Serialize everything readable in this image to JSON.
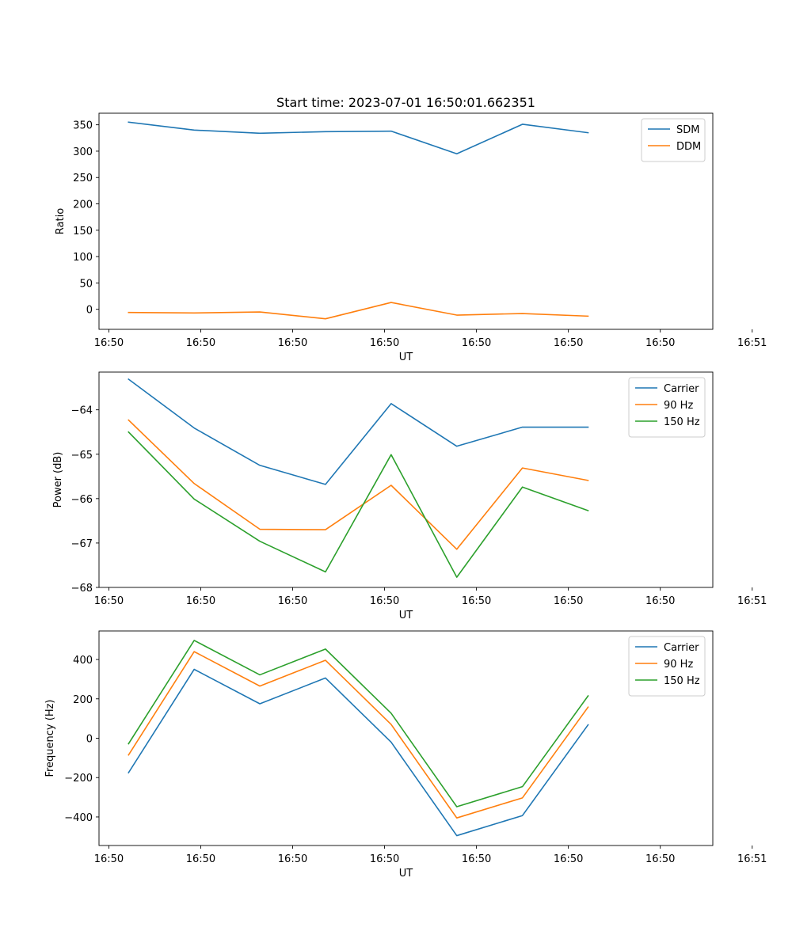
{
  "chart_data": [
    {
      "type": "line",
      "title": "Start time: 2023-07-01 16:50:01.662351",
      "xlabel": "UT",
      "ylabel": "Ratio",
      "x": [
        0,
        1,
        2,
        3,
        4,
        5,
        6,
        7
      ],
      "xlim": [
        -0.45,
        8.9
      ],
      "ylim": [
        -38,
        372
      ],
      "xticks": [
        -0.3,
        1.1,
        2.5,
        3.9,
        5.3,
        6.7,
        8.1,
        9.5
      ],
      "xtick_labels": [
        "16:50",
        "16:50",
        "16:50",
        "16:50",
        "16:50",
        "16:50",
        "16:50",
        "16:51"
      ],
      "yticks": [
        0,
        50,
        100,
        150,
        200,
        250,
        300,
        350
      ],
      "ytick_labels": [
        "0",
        "50",
        "100",
        "150",
        "200",
        "250",
        "300",
        "350"
      ],
      "legend_loc": "upper right",
      "series": [
        {
          "name": "SDM",
          "color": "#1f77b4",
          "values": [
            355,
            340,
            334,
            337,
            338,
            295,
            351,
            335
          ]
        },
        {
          "name": "DDM",
          "color": "#ff7f0e",
          "values": [
            -6,
            -7,
            -5,
            -18,
            13,
            -11,
            -8,
            -13
          ]
        }
      ]
    },
    {
      "type": "line",
      "title": "",
      "xlabel": "UT",
      "ylabel": "Power (dB)",
      "x": [
        0,
        1,
        2,
        3,
        4,
        5,
        6,
        7
      ],
      "xlim": [
        -0.45,
        8.9
      ],
      "ylim": [
        -68.0,
        -63.15
      ],
      "xticks": [
        -0.3,
        1.1,
        2.5,
        3.9,
        5.3,
        6.7,
        8.1,
        9.5
      ],
      "xtick_labels": [
        "16:50",
        "16:50",
        "16:50",
        "16:50",
        "16:50",
        "16:50",
        "16:50",
        "16:51"
      ],
      "yticks": [
        -68,
        -67,
        -66,
        -65,
        -64
      ],
      "ytick_labels": [
        "−68",
        "−67",
        "−66",
        "−65",
        "−64"
      ],
      "legend_loc": "upper right",
      "series": [
        {
          "name": "Carrier",
          "color": "#1f77b4",
          "values": [
            -63.31,
            -64.41,
            -65.25,
            -65.68,
            -63.86,
            -64.82,
            -64.39,
            -64.39
          ]
        },
        {
          "name": "90 Hz",
          "color": "#ff7f0e",
          "values": [
            -64.23,
            -65.66,
            -66.69,
            -66.7,
            -65.7,
            -67.14,
            -65.31,
            -65.59
          ]
        },
        {
          "name": "150 Hz",
          "color": "#2ca02c",
          "values": [
            -64.5,
            -66.01,
            -66.96,
            -67.65,
            -65.01,
            -67.77,
            -65.74,
            -66.27
          ]
        }
      ]
    },
    {
      "type": "line",
      "title": "",
      "xlabel": "UT",
      "ylabel": "Frequency (Hz)",
      "x": [
        0,
        1,
        2,
        3,
        4,
        5,
        6,
        7
      ],
      "xlim": [
        -0.45,
        8.9
      ],
      "ylim": [
        -545,
        545
      ],
      "xticks": [
        -0.3,
        1.1,
        2.5,
        3.9,
        5.3,
        6.7,
        8.1,
        9.5
      ],
      "xtick_labels": [
        "16:50",
        "16:50",
        "16:50",
        "16:50",
        "16:50",
        "16:50",
        "16:50",
        "16:51"
      ],
      "yticks": [
        -400,
        -200,
        0,
        200,
        400
      ],
      "ytick_labels": [
        "−400",
        "−200",
        "0",
        "200",
        "400"
      ],
      "legend_loc": "upper right",
      "series": [
        {
          "name": "Carrier",
          "color": "#1f77b4",
          "values": [
            -175,
            350,
            175,
            306,
            -20,
            -495,
            -393,
            68
          ]
        },
        {
          "name": "90 Hz",
          "color": "#ff7f0e",
          "values": [
            -85,
            440,
            265,
            396,
            70,
            -405,
            -303,
            158
          ]
        },
        {
          "name": "150 Hz",
          "color": "#2ca02c",
          "values": [
            -28,
            497,
            322,
            453,
            127,
            -348,
            -246,
            215
          ]
        }
      ]
    }
  ]
}
